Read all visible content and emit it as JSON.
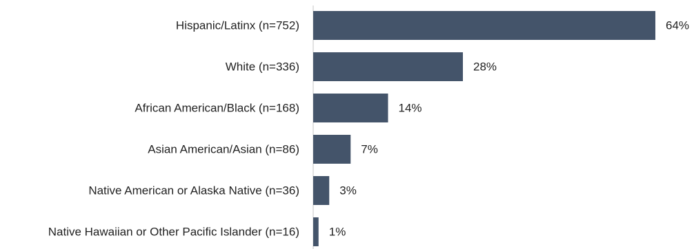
{
  "chart_data": {
    "type": "bar",
    "orientation": "horizontal",
    "categories": [
      "Hispanic/Latinx (n=752)",
      "White (n=336)",
      "African American/Black (n=168)",
      "Asian American/Asian (n=86)",
      "Native American or Alaska Native (n=36)",
      "Native Hawaiian or Other Pacific Islander (n=16)"
    ],
    "values": [
      64,
      28,
      14,
      7,
      3,
      1
    ],
    "value_labels": [
      "64%",
      "28%",
      "14%",
      "7%",
      "3%",
      "1%"
    ],
    "title": "",
    "xlabel": "",
    "ylabel": "",
    "xlim": [
      0,
      64
    ],
    "grid": false,
    "legend": "none",
    "colors": {
      "bar": "#44546a",
      "axis": "#d9d9d9",
      "text": "#222222"
    }
  }
}
